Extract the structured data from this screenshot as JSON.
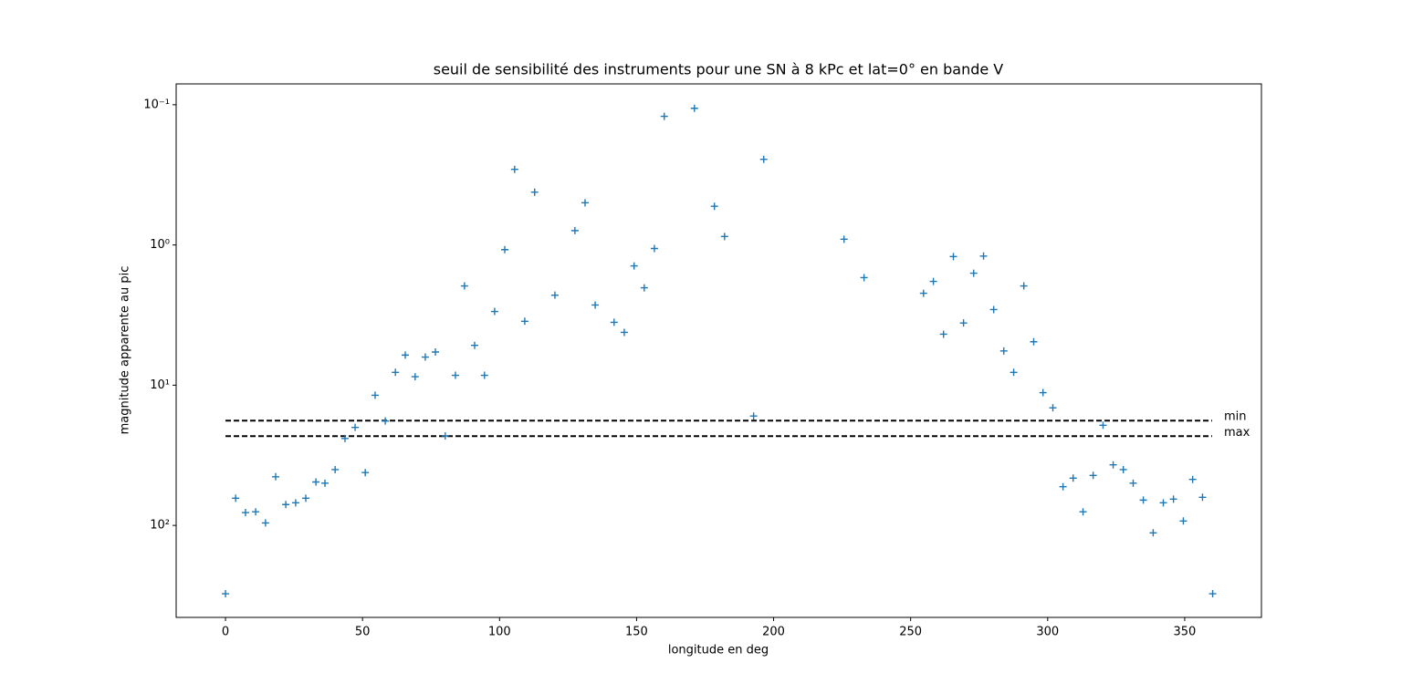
{
  "chart_data": {
    "type": "scatter",
    "title": "seuil de sensibilité des instruments pour une SN à 8 kPc et lat=0° en bande V",
    "xlabel": "longitude en deg",
    "ylabel": "magnitude apparente au pic",
    "marker": "+",
    "series": [
      {
        "color": "#1f77b4",
        "x": [
          0,
          3.7,
          7.3,
          11,
          14.6,
          18.3,
          22,
          25.6,
          29.3,
          33,
          36.3,
          40,
          43.6,
          47.3,
          51,
          54.6,
          58.3,
          62,
          65.6,
          69.2,
          72.9,
          76.6,
          80.2,
          83.9,
          87.2,
          90.9,
          94.5,
          98.2,
          101.9,
          105.5,
          109.2,
          112.8,
          120.2,
          127.5,
          131.2,
          134.9,
          141.8,
          145.5,
          149.1,
          152.8,
          156.5,
          160.1,
          171.1,
          178.4,
          182.1,
          192.7,
          196.4,
          225.7,
          233,
          254.7,
          258.3,
          262,
          265.6,
          269.3,
          273,
          276.6,
          280.3,
          284,
          287.6,
          291.3,
          294.9,
          298.3,
          301.9,
          305.6,
          309.3,
          312.9,
          316.6,
          320.2,
          323.9,
          327.6,
          331.2,
          334.9,
          338.5,
          342.2,
          345.9,
          349.5,
          352.9,
          356.5,
          360.2
        ],
        "values": [
          307,
          64,
          81,
          80,
          96,
          45,
          71,
          69,
          64,
          49,
          50,
          40,
          24,
          20,
          42,
          11.8,
          18,
          8.1,
          6.1,
          8.7,
          6.3,
          5.8,
          23,
          8.5,
          1.96,
          5.2,
          8.5,
          2.98,
          1.08,
          0.289,
          3.5,
          0.42,
          2.28,
          0.79,
          0.5,
          2.68,
          3.56,
          4.2,
          1.41,
          2.02,
          1.06,
          0.121,
          0.106,
          0.53,
          0.87,
          16.6,
          0.245,
          0.91,
          1.71,
          2.21,
          1.82,
          4.33,
          1.21,
          3.6,
          1.59,
          1.2,
          2.89,
          5.7,
          8.1,
          1.96,
          4.9,
          11.3,
          14.5,
          53,
          46,
          80,
          44,
          19.3,
          37,
          40,
          50,
          66,
          113,
          69,
          65,
          93,
          47,
          63,
          307
        ]
      }
    ],
    "hlines": [
      {
        "name": "min",
        "value": 17.9,
        "color": "#000000",
        "x_range": [
          0,
          360
        ]
      },
      {
        "name": "max",
        "value": 23.1,
        "color": "#000000",
        "x_range": [
          0,
          360
        ]
      }
    ],
    "xlim": [
      -18,
      378
    ],
    "xticks": [
      0,
      50,
      100,
      150,
      200,
      250,
      300,
      350
    ],
    "ylim": [
      453,
      0.071
    ],
    "log_scale_y": true,
    "yticks": [
      {
        "value": 0.1,
        "label": "10⁻¹"
      },
      {
        "value": 1,
        "label": "10⁰"
      },
      {
        "value": 10,
        "label": "10¹"
      },
      {
        "value": 100,
        "label": "10²"
      }
    ]
  }
}
